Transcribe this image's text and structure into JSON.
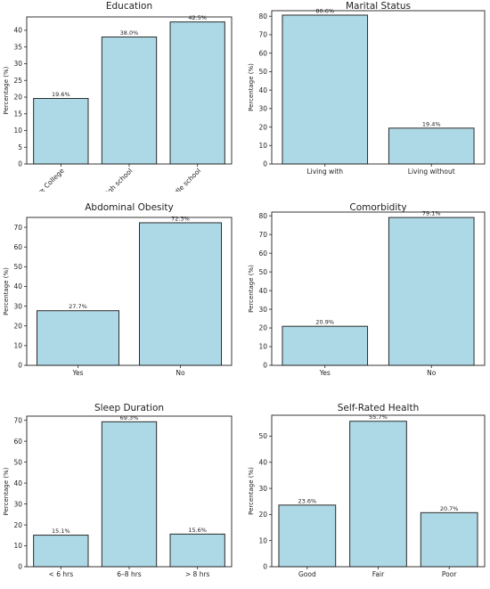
{
  "colors": {
    "bar": "#add8e6",
    "edge": "#2b2b2b",
    "axis": "#222222"
  },
  "chart_data": [
    {
      "type": "bar",
      "title": "Education",
      "ylabel": "Percentage (%)",
      "categories": [
        "≥ College",
        "High school",
        "≤ Middle school"
      ],
      "values": [
        19.6,
        38.0,
        42.5
      ],
      "data_labels": [
        "19.6%",
        "38.0%",
        "42.5%"
      ],
      "ylim": [
        0,
        44
      ],
      "yticks": [
        0,
        5,
        10,
        15,
        20,
        25,
        30,
        35,
        40
      ],
      "rotated_x_labels": true,
      "grid": false
    },
    {
      "type": "bar",
      "title": "Marital Status",
      "ylabel": "Percentage (%)",
      "categories": [
        "Living with",
        "Living without"
      ],
      "values": [
        80.6,
        19.4
      ],
      "data_labels": [
        "80.6%",
        "19.4%"
      ],
      "ylim": [
        0,
        83
      ],
      "yticks": [
        0,
        10,
        20,
        30,
        40,
        50,
        60,
        70,
        80
      ],
      "rotated_x_labels": false,
      "grid": false
    },
    {
      "type": "bar",
      "title": "Abdominal Obesity",
      "ylabel": "Percentage (%)",
      "categories": [
        "Yes",
        "No"
      ],
      "values": [
        27.7,
        72.3
      ],
      "data_labels": [
        "27.7%",
        "72.3%"
      ],
      "ylim": [
        0,
        75
      ],
      "yticks": [
        0,
        10,
        20,
        30,
        40,
        50,
        60,
        70
      ],
      "rotated_x_labels": false,
      "grid": false
    },
    {
      "type": "bar",
      "title": "Comorbidity",
      "ylabel": "Percentage (%)",
      "categories": [
        "Yes",
        "No"
      ],
      "values": [
        20.9,
        79.1
      ],
      "data_labels": [
        "20.9%",
        "79.1%"
      ],
      "ylim": [
        0,
        82
      ],
      "yticks": [
        0,
        10,
        20,
        30,
        40,
        50,
        60,
        70,
        80
      ],
      "rotated_x_labels": false,
      "grid": false
    },
    {
      "type": "bar",
      "title": "Sleep Duration",
      "ylabel": "Percentage (%)",
      "categories": [
        "< 6 hrs",
        "6–8 hrs",
        "> 8 hrs"
      ],
      "values": [
        15.1,
        69.3,
        15.6
      ],
      "data_labels": [
        "15.1%",
        "69.3%",
        "15.6%"
      ],
      "ylim": [
        0,
        72
      ],
      "yticks": [
        0,
        10,
        20,
        30,
        40,
        50,
        60,
        70
      ],
      "rotated_x_labels": false,
      "grid": false
    },
    {
      "type": "bar",
      "title": "Self-Rated Health",
      "ylabel": "Percentage (%)",
      "categories": [
        "Good",
        "Fair",
        "Poor"
      ],
      "values": [
        23.6,
        55.7,
        20.7
      ],
      "data_labels": [
        "23.6%",
        "55.7%",
        "20.7%"
      ],
      "ylim": [
        0,
        58
      ],
      "yticks": [
        0,
        10,
        20,
        30,
        40,
        50
      ],
      "rotated_x_labels": false,
      "grid": false
    }
  ]
}
